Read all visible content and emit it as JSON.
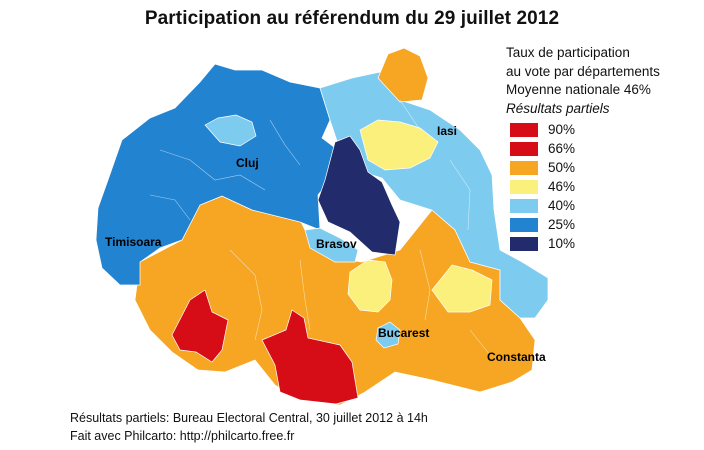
{
  "title": "Participation au référendum du 29 juillet 2012",
  "legend": {
    "line1": "Taux de participation",
    "line2": "au vote par départements",
    "line3": "Moyenne nationale 46%",
    "line4": "Résultats partiels",
    "items": [
      {
        "label": "90%",
        "color": "#d60d17"
      },
      {
        "label": "66%",
        "color": "#d60d17"
      },
      {
        "label": "50%",
        "color": "#f6a623"
      },
      {
        "label": "46%",
        "color": "#fbf07b"
      },
      {
        "label": "40%",
        "color": "#7ecbf0"
      },
      {
        "label": "25%",
        "color": "#2283d1"
      },
      {
        "label": "10%",
        "color": "#222b6b"
      }
    ]
  },
  "cities": {
    "cluj": "Cluj",
    "iasi": "Iasi",
    "timisoara": "Timisoara",
    "brasov": "Brasov",
    "bucarest": "Bucarest",
    "constanta": "Constanta"
  },
  "footer": {
    "line1": "Résultats partiels: Bureau Electoral Central, 30 juillet 2012 à 14h",
    "line2": "Fait avec Philcarto: http://philcarto.free.fr"
  }
}
